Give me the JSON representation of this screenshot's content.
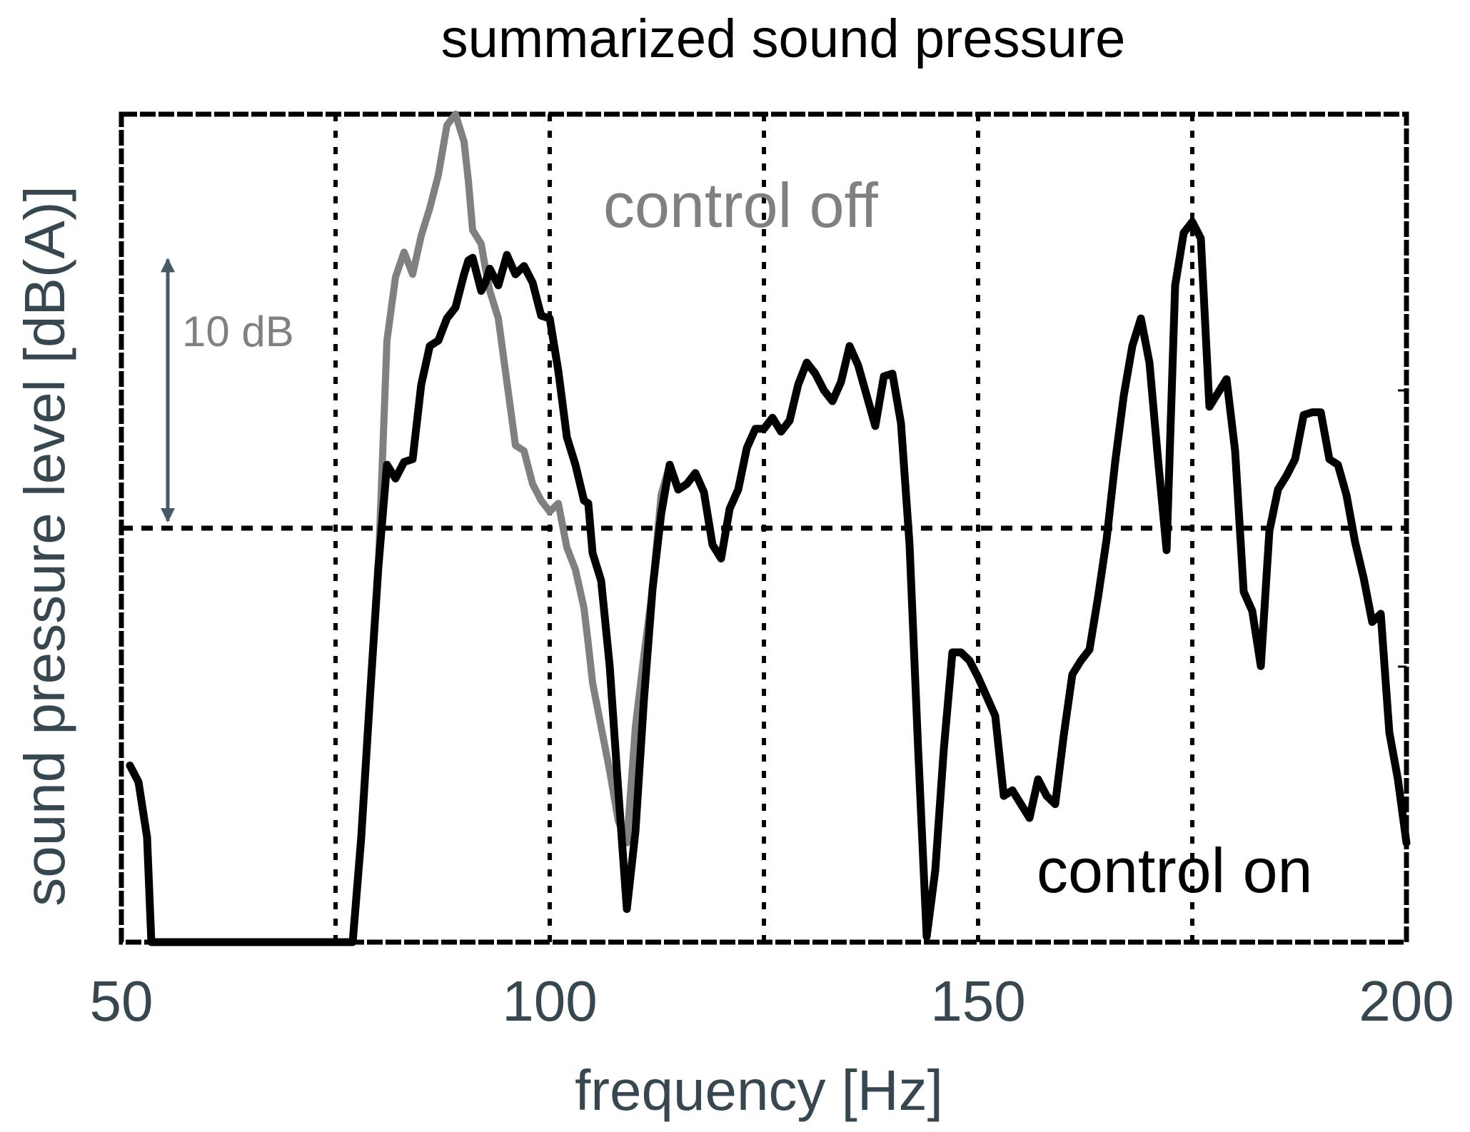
{
  "chart_data": {
    "type": "line",
    "title": "summarized sound pressure",
    "xlabel": "frequency [Hz]",
    "ylabel": "sound  pressure  level  [dB(A)]",
    "xlim": [
      50,
      200
    ],
    "ylim": [
      0,
      30
    ],
    "x_ticks": [
      50,
      100,
      150,
      200
    ],
    "x_tick_labels": [
      "50",
      "100",
      "150",
      "200"
    ],
    "grid": {
      "x_dotted_at": [
        75,
        100,
        125,
        150,
        175
      ],
      "y_dashed_at": [
        15
      ]
    },
    "legend": "none",
    "annotations": {
      "control_off": "control off",
      "control_on": "control on",
      "scale_bar": "10 dB",
      "scale_bar_span_db": 10
    },
    "series": [
      {
        "name": "control off",
        "color": "#808080",
        "x": [
          51,
          52,
          53,
          53.5,
          77,
          78,
          79,
          80,
          81,
          82,
          83,
          84,
          85,
          86,
          87,
          88,
          89,
          90,
          90.5,
          91,
          92,
          92.5,
          93,
          94,
          95,
          96,
          97,
          98,
          99,
          100,
          101,
          102,
          103,
          104,
          104.5,
          105,
          106,
          107,
          108,
          109,
          110,
          111,
          112,
          113,
          114,
          115,
          116,
          117,
          118,
          119,
          120,
          121,
          122,
          123,
          124,
          125,
          126,
          127,
          128,
          129,
          130,
          131,
          132,
          133,
          134,
          135,
          136,
          137,
          138,
          139,
          140,
          141,
          142,
          143,
          144,
          145,
          146,
          147,
          148,
          149,
          150,
          151,
          152,
          153,
          154,
          155,
          156,
          157,
          158,
          159,
          160,
          161,
          162,
          163,
          164,
          165,
          166,
          167,
          168,
          169,
          170,
          171,
          172,
          173,
          174,
          175,
          176,
          177,
          178,
          179,
          180,
          181,
          182,
          183,
          184,
          185,
          186,
          187,
          188,
          189,
          190,
          191,
          192,
          193,
          194,
          195,
          196,
          197,
          198,
          199,
          200
        ],
        "y": [
          6.4,
          5.8,
          3.8,
          0,
          0,
          3.8,
          8.8,
          13.6,
          21.8,
          24.1,
          25.0,
          24.2,
          25.6,
          26.6,
          27.8,
          29.6,
          30.0,
          29.0,
          27.6,
          25.8,
          25.3,
          24.4,
          23.6,
          22.6,
          20.3,
          18.0,
          17.8,
          16.6,
          16.0,
          15.6,
          15.9,
          14.3,
          13.5,
          12.1,
          10.8,
          9.4,
          7.8,
          6.2,
          4.4,
          3.6,
          7.8,
          10.4,
          12.8,
          16.2,
          17.3,
          16.4,
          16.6,
          17.0,
          16.3,
          14.4,
          13.9,
          15.7,
          16.4,
          17.9,
          18.6,
          18.6,
          19.0,
          18.5,
          18.9,
          20.2,
          21.0,
          20.6,
          20.0,
          19.6,
          20.3,
          21.6,
          20.9,
          19.8,
          18.7,
          20.5,
          20.6,
          18.8,
          14.4,
          7.0,
          0.2,
          2.6,
          7.0,
          10.5,
          10.5,
          10.2,
          9.6,
          8.9,
          8.2,
          5.3,
          5.5,
          5.0,
          4.5,
          5.9,
          5.3,
          5.0,
          7.5,
          9.7,
          10.2,
          10.6,
          12.5,
          14.6,
          17.4,
          19.8,
          21.6,
          22.6,
          21.0,
          17.5,
          14.2,
          23.8,
          25.7,
          26.1,
          25.5,
          19.4,
          19.9,
          20.4,
          17.8,
          12.7,
          12.0,
          10.0,
          14.9,
          16.4,
          16.9,
          17.5,
          19.1,
          19.2,
          19.2,
          17.5,
          17.3,
          16.2,
          14.5,
          13.2,
          11.6,
          11.9,
          7.6,
          5.9,
          3.6
        ]
      },
      {
        "name": "control on",
        "color": "#000000",
        "x": [
          51,
          52,
          53,
          53.5,
          77,
          78,
          79,
          80,
          81,
          82,
          83,
          84,
          85,
          86,
          87,
          88,
          89,
          90,
          90.5,
          91,
          92,
          92.5,
          93,
          94,
          95,
          96,
          97,
          98,
          99,
          100,
          101,
          102,
          103,
          104,
          104.5,
          105,
          106,
          107,
          108,
          109,
          110,
          111,
          112,
          113,
          114,
          115,
          116,
          117,
          118,
          119,
          120,
          121,
          122,
          123,
          124,
          125,
          126,
          127,
          128,
          129,
          130,
          131,
          132,
          133,
          134,
          135,
          136,
          137,
          138,
          139,
          140,
          141,
          142,
          143,
          144,
          145,
          146,
          147,
          148,
          149,
          150,
          151,
          152,
          153,
          154,
          155,
          156,
          157,
          158,
          159,
          160,
          161,
          162,
          163,
          164,
          165,
          166,
          167,
          168,
          169,
          170,
          171,
          172,
          173,
          174,
          175,
          176,
          177,
          178,
          179,
          180,
          181,
          182,
          183,
          184,
          185,
          186,
          187,
          188,
          189,
          190,
          191,
          192,
          193,
          194,
          195,
          196,
          197,
          198,
          199,
          200
        ],
        "y": [
          6.4,
          5.8,
          3.8,
          0,
          0,
          3.8,
          8.8,
          13.6,
          17.3,
          16.8,
          17.4,
          17.5,
          20.2,
          21.6,
          21.8,
          22.6,
          23.0,
          24.2,
          24.7,
          24.8,
          23.6,
          23.9,
          24.4,
          23.8,
          24.9,
          24.2,
          24.5,
          23.9,
          22.7,
          22.6,
          20.7,
          18.3,
          17.3,
          16.0,
          15.9,
          14.1,
          13.1,
          10.0,
          5.5,
          1.2,
          4.0,
          8.8,
          12.8,
          15.5,
          17.3,
          16.4,
          16.6,
          17.0,
          16.3,
          14.4,
          13.9,
          15.7,
          16.4,
          17.9,
          18.6,
          18.6,
          19.0,
          18.5,
          18.9,
          20.2,
          21.0,
          20.6,
          20.0,
          19.6,
          20.3,
          21.6,
          20.9,
          19.8,
          18.7,
          20.5,
          20.6,
          18.8,
          14.4,
          7.0,
          0.2,
          2.6,
          7.0,
          10.5,
          10.5,
          10.2,
          9.6,
          8.9,
          8.2,
          5.3,
          5.5,
          5.0,
          4.5,
          5.9,
          5.3,
          5.0,
          7.5,
          9.7,
          10.2,
          10.6,
          12.5,
          14.6,
          17.4,
          19.8,
          21.6,
          22.6,
          21.0,
          17.5,
          14.2,
          23.8,
          25.7,
          26.1,
          25.5,
          19.4,
          19.9,
          20.4,
          17.8,
          12.7,
          12.0,
          10.0,
          14.9,
          16.4,
          16.9,
          17.5,
          19.1,
          19.2,
          19.2,
          17.5,
          17.3,
          16.2,
          14.5,
          13.2,
          11.6,
          11.9,
          7.6,
          5.9,
          3.6
        ]
      }
    ]
  }
}
